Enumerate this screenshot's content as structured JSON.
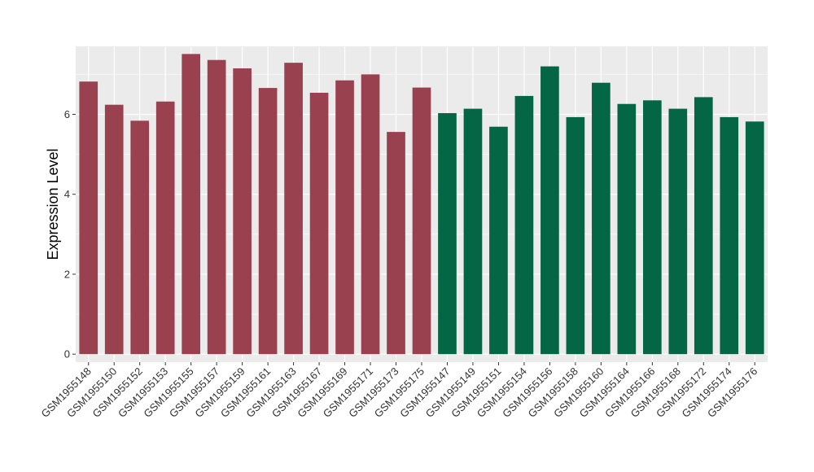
{
  "chart_data": {
    "type": "bar",
    "title": "",
    "xlabel": "",
    "ylabel": "Expression Level",
    "ylim": [
      -0.2,
      7.7
    ],
    "yticks": [
      0,
      2,
      4,
      6
    ],
    "grid": true,
    "legend": "none",
    "panel_background": "#ebebeb",
    "gridline_color": "#ffffff",
    "categories": [
      "GSM1955148",
      "GSM1955150",
      "GSM1955152",
      "GSM1955153",
      "GSM1955155",
      "GSM1955157",
      "GSM1955159",
      "GSM1955161",
      "GSM1955163",
      "GSM1955167",
      "GSM1955169",
      "GSM1955171",
      "GSM1955173",
      "GSM1955175",
      "GSM1955147",
      "GSM1955149",
      "GSM1955151",
      "GSM1955154",
      "GSM1955156",
      "GSM1955158",
      "GSM1955160",
      "GSM1955164",
      "GSM1955166",
      "GSM1955168",
      "GSM1955172",
      "GSM1955174",
      "GSM1955176"
    ],
    "values": [
      6.82,
      6.24,
      5.84,
      6.32,
      7.51,
      7.36,
      7.15,
      6.66,
      7.29,
      6.54,
      6.85,
      7.0,
      5.56,
      6.67,
      6.03,
      6.14,
      5.69,
      6.46,
      7.2,
      5.93,
      6.79,
      6.26,
      6.35,
      6.14,
      6.43,
      5.93,
      5.82
    ],
    "groups": [
      "A",
      "A",
      "A",
      "A",
      "A",
      "A",
      "A",
      "A",
      "A",
      "A",
      "A",
      "A",
      "A",
      "A",
      "B",
      "B",
      "B",
      "B",
      "B",
      "B",
      "B",
      "B",
      "B",
      "B",
      "B",
      "B",
      "B"
    ],
    "group_colors": {
      "A": "#9a4150",
      "B": "#046644"
    }
  }
}
